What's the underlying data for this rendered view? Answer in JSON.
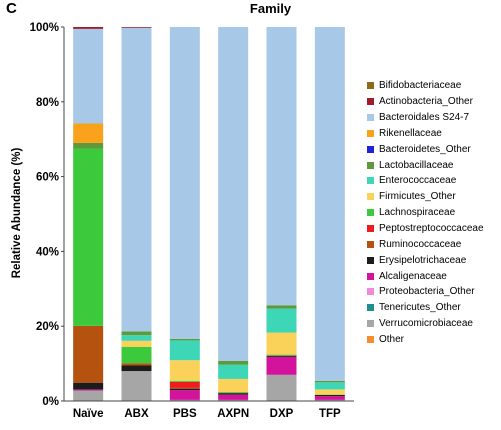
{
  "panel_letter": "C",
  "chart_data": {
    "type": "bar",
    "stacked": true,
    "title": "Family",
    "xlabel": "",
    "ylabel": "Relative Abundance (%)",
    "ylim": [
      0,
      100
    ],
    "yticks": [
      "0%",
      "20%",
      "40%",
      "60%",
      "80%",
      "100%"
    ],
    "categories": [
      "Naïve",
      "ABX",
      "PBS",
      "AXPN",
      "DXP",
      "TFP"
    ],
    "legend_position": "right",
    "series": [
      {
        "name": "Other",
        "color": "#f28e2b",
        "values": [
          0,
          0,
          0,
          0,
          0,
          0
        ]
      },
      {
        "name": "Verrucomicrobiaceae",
        "color": "#a6a6a6",
        "values": [
          2.8,
          8.0,
          0.3,
          0.3,
          7.0,
          0.3
        ]
      },
      {
        "name": "Tenericutes_Other",
        "color": "#1f8f8f",
        "values": [
          0,
          0,
          0,
          0,
          0,
          0
        ]
      },
      {
        "name": "Proteobacteria_Other",
        "color": "#f08ad8",
        "values": [
          0,
          0,
          0,
          0,
          0,
          0
        ]
      },
      {
        "name": "Alcaligenaceae",
        "color": "#d4139c",
        "values": [
          0.3,
          0,
          2.6,
          1.4,
          4.8,
          1.0
        ]
      },
      {
        "name": "Erysipelotrichaceae",
        "color": "#1c1c1c",
        "values": [
          1.8,
          1.5,
          0.4,
          0.4,
          0.3,
          0.3
        ]
      },
      {
        "name": "Ruminococcaceae",
        "color": "#b5520f",
        "values": [
          15.2,
          0.6,
          0.2,
          0.1,
          0.1,
          0
        ]
      },
      {
        "name": "Peptostreptococcaceae",
        "color": "#ee1c1c",
        "values": [
          0,
          0,
          1.6,
          0,
          0,
          0
        ]
      },
      {
        "name": "Lachnospiraceae",
        "color": "#3cc93c",
        "values": [
          47.4,
          4.4,
          0.3,
          0.2,
          0.2,
          0.1
        ]
      },
      {
        "name": "Firmicutes_Other",
        "color": "#fad25a",
        "values": [
          0,
          1.6,
          5.5,
          3.5,
          5.9,
          1.4
        ]
      },
      {
        "name": "Enterococcaceae",
        "color": "#3dd6b6",
        "values": [
          0,
          1.5,
          5.3,
          3.8,
          6.4,
          1.9
        ]
      },
      {
        "name": "Lactobacillaceae",
        "color": "#5e9a3c",
        "values": [
          1.5,
          1.0,
          0.4,
          1.0,
          0.9,
          0.4
        ]
      },
      {
        "name": "Bacteroidetes_Other",
        "color": "#1f22d6",
        "values": [
          0,
          0,
          0,
          0,
          0,
          0
        ]
      },
      {
        "name": "Rikenellaceae",
        "color": "#faa21b",
        "values": [
          5.2,
          0,
          0,
          0,
          0,
          0
        ]
      },
      {
        "name": "Bacteroidales S24-7",
        "color": "#a7c8e6",
        "values": [
          25.3,
          81.2,
          83.4,
          89.3,
          74.4,
          94.6
        ]
      },
      {
        "name": "Actinobacteria_Other",
        "color": "#a01c2a",
        "values": [
          0.5,
          0.2,
          0,
          0,
          0,
          0
        ]
      },
      {
        "name": "Bifidobacteriaceae",
        "color": "#8b6b1a",
        "values": [
          0,
          0,
          0,
          0,
          0,
          0
        ]
      }
    ]
  }
}
